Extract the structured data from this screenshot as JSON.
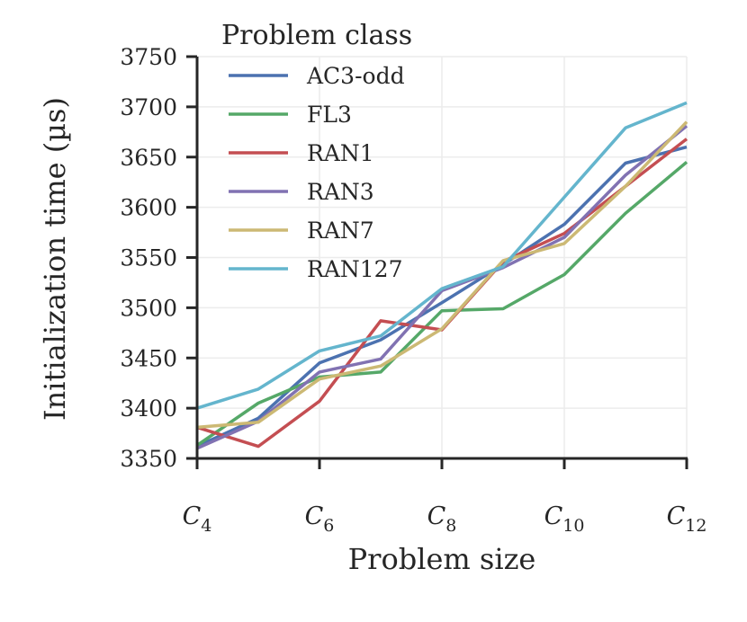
{
  "chart_data": {
    "type": "line",
    "title": "",
    "xlabel": "Problem size",
    "ylabel": "Initialization time (µs)",
    "legend_title": "Problem class",
    "legend_position": "top-left",
    "grid": true,
    "x": [
      4,
      5,
      6,
      7,
      8,
      9,
      10,
      11,
      12
    ],
    "xlim": [
      4,
      12
    ],
    "x_ticks": [
      {
        "value": 4,
        "base": "C",
        "sub": "4"
      },
      {
        "value": 6,
        "base": "C",
        "sub": "6"
      },
      {
        "value": 8,
        "base": "C",
        "sub": "8"
      },
      {
        "value": 10,
        "base": "C",
        "sub": "10"
      },
      {
        "value": 12,
        "base": "C",
        "sub": "12"
      }
    ],
    "ylim": [
      3350,
      3750
    ],
    "y_ticks": [
      3350,
      3400,
      3450,
      3500,
      3550,
      3600,
      3650,
      3700,
      3750
    ],
    "series": [
      {
        "name": "AC3-odd",
        "color": "#4c72b0",
        "values": [
          3362,
          3390,
          3445,
          3468,
          3505,
          3543,
          3583,
          3644,
          3660
        ]
      },
      {
        "name": "FL3",
        "color": "#55a868",
        "values": [
          3363,
          3405,
          3431,
          3436,
          3497,
          3499,
          3533,
          3594,
          3645
        ]
      },
      {
        "name": "RAN1",
        "color": "#c44e52",
        "values": [
          3381,
          3362,
          3407,
          3487,
          3478,
          3546,
          3574,
          3621,
          3668
        ]
      },
      {
        "name": "RAN3",
        "color": "#8172b2",
        "values": [
          3360,
          3387,
          3436,
          3449,
          3517,
          3540,
          3570,
          3632,
          3681
        ]
      },
      {
        "name": "RAN7",
        "color": "#ccb974",
        "values": [
          3381,
          3386,
          3429,
          3442,
          3479,
          3547,
          3564,
          3621,
          3685
        ]
      },
      {
        "name": "RAN127",
        "color": "#64b5cd",
        "values": [
          3400,
          3419,
          3457,
          3472,
          3519,
          3541,
          3610,
          3679,
          3704
        ]
      }
    ]
  }
}
